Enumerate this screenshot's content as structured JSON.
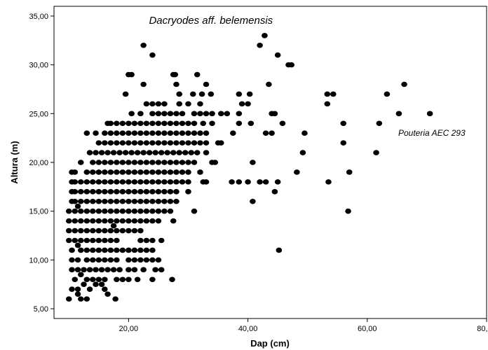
{
  "chart_data": {
    "type": "scatter",
    "xlabel": "Dap (cm)",
    "ylabel": "Altura (m)",
    "xlim": [
      7.5,
      80
    ],
    "ylim": [
      4,
      36
    ],
    "xticks": [
      "20,00",
      "40,00",
      "60,00",
      "80,00"
    ],
    "xtick_values": [
      20,
      40,
      60,
      80
    ],
    "yticks": [
      "5,00",
      "10,00",
      "15,00",
      "20,00",
      "25,00",
      "30,00",
      "35,00"
    ],
    "ytick_values": [
      5,
      10,
      15,
      20,
      25,
      30,
      35
    ],
    "grid": false,
    "legend": "none",
    "marker_color": "#000000",
    "annotations": [
      {
        "text": "Dacryodes aff. belemensis",
        "x": 33.8,
        "y": 34.2
      },
      {
        "text": "Pouteria AEC 293",
        "x": 70.2,
        "y": 23.0
      }
    ],
    "points": [
      [
        22.5,
        32
      ],
      [
        24,
        31
      ],
      [
        42,
        32
      ],
      [
        42.8,
        33
      ],
      [
        46.8,
        30
      ],
      [
        47.3,
        30
      ],
      [
        45,
        31
      ],
      [
        20,
        29
      ],
      [
        20.5,
        29
      ],
      [
        22.5,
        28
      ],
      [
        27.5,
        29
      ],
      [
        27.8,
        29
      ],
      [
        31.5,
        29
      ],
      [
        28,
        28
      ],
      [
        33,
        28
      ],
      [
        43.5,
        28
      ],
      [
        66.2,
        28
      ],
      [
        19.5,
        27
      ],
      [
        28.5,
        27
      ],
      [
        30.8,
        27
      ],
      [
        32.3,
        27
      ],
      [
        33.8,
        27
      ],
      [
        38.5,
        27
      ],
      [
        40.3,
        27
      ],
      [
        53.3,
        27
      ],
      [
        54.3,
        27
      ],
      [
        63.3,
        27
      ],
      [
        23,
        26
      ],
      [
        24,
        26
      ],
      [
        25,
        26
      ],
      [
        26,
        26
      ],
      [
        28.5,
        26
      ],
      [
        30,
        26
      ],
      [
        32,
        26
      ],
      [
        39,
        26
      ],
      [
        40,
        26
      ],
      [
        53.3,
        26
      ],
      [
        20.5,
        25
      ],
      [
        22,
        25
      ],
      [
        24,
        25
      ],
      [
        25,
        25
      ],
      [
        26,
        25
      ],
      [
        27,
        25
      ],
      [
        28,
        25
      ],
      [
        29,
        25
      ],
      [
        31,
        25
      ],
      [
        32,
        25
      ],
      [
        33,
        25
      ],
      [
        34,
        25
      ],
      [
        35.5,
        25
      ],
      [
        36.5,
        25
      ],
      [
        38.5,
        25
      ],
      [
        44,
        25
      ],
      [
        44.5,
        25
      ],
      [
        65.3,
        25
      ],
      [
        70.5,
        25
      ],
      [
        16.5,
        24
      ],
      [
        17,
        24
      ],
      [
        18,
        24
      ],
      [
        19,
        24
      ],
      [
        20,
        24
      ],
      [
        21,
        24
      ],
      [
        22,
        24
      ],
      [
        23,
        24
      ],
      [
        24,
        24
      ],
      [
        25,
        24
      ],
      [
        26,
        24
      ],
      [
        27,
        24
      ],
      [
        28,
        24
      ],
      [
        29,
        24
      ],
      [
        30,
        24
      ],
      [
        31,
        24
      ],
      [
        32.5,
        24
      ],
      [
        34,
        24
      ],
      [
        38.5,
        24
      ],
      [
        40.5,
        24
      ],
      [
        45.8,
        24
      ],
      [
        56,
        24
      ],
      [
        62,
        24
      ],
      [
        13,
        23
      ],
      [
        14.5,
        23
      ],
      [
        16,
        23
      ],
      [
        17,
        23
      ],
      [
        18,
        23
      ],
      [
        19,
        23
      ],
      [
        20,
        23
      ],
      [
        21,
        23
      ],
      [
        22,
        23
      ],
      [
        23,
        23
      ],
      [
        24,
        23
      ],
      [
        25,
        23
      ],
      [
        26,
        23
      ],
      [
        27,
        23
      ],
      [
        28,
        23
      ],
      [
        29,
        23
      ],
      [
        30,
        23
      ],
      [
        31,
        23
      ],
      [
        32,
        23
      ],
      [
        33,
        23
      ],
      [
        37.5,
        23
      ],
      [
        43,
        23
      ],
      [
        44,
        23
      ],
      [
        49.5,
        23
      ],
      [
        15,
        22
      ],
      [
        16,
        22
      ],
      [
        17,
        22
      ],
      [
        18,
        22
      ],
      [
        19,
        22
      ],
      [
        20,
        22
      ],
      [
        21,
        22
      ],
      [
        22,
        22
      ],
      [
        23,
        22
      ],
      [
        24,
        22
      ],
      [
        25,
        22
      ],
      [
        26,
        22
      ],
      [
        27,
        22
      ],
      [
        28,
        22
      ],
      [
        29,
        22
      ],
      [
        30,
        22
      ],
      [
        31,
        22
      ],
      [
        32,
        22
      ],
      [
        33,
        22
      ],
      [
        35,
        22
      ],
      [
        35.5,
        22
      ],
      [
        56,
        22
      ],
      [
        13.5,
        21
      ],
      [
        14.5,
        21
      ],
      [
        15.5,
        21
      ],
      [
        16.5,
        21
      ],
      [
        17.5,
        21
      ],
      [
        18.5,
        21
      ],
      [
        19.5,
        21
      ],
      [
        20.5,
        21
      ],
      [
        21.5,
        21
      ],
      [
        22.5,
        21
      ],
      [
        23.5,
        21
      ],
      [
        24.5,
        21
      ],
      [
        25.5,
        21
      ],
      [
        26.5,
        21
      ],
      [
        27.5,
        21
      ],
      [
        28.5,
        21
      ],
      [
        29.5,
        21
      ],
      [
        30.5,
        21
      ],
      [
        31.5,
        21
      ],
      [
        33,
        21
      ],
      [
        49.2,
        21
      ],
      [
        61.5,
        21
      ],
      [
        12,
        20
      ],
      [
        14,
        20
      ],
      [
        15,
        20
      ],
      [
        16,
        20
      ],
      [
        17,
        20
      ],
      [
        18,
        20
      ],
      [
        19,
        20
      ],
      [
        20,
        20
      ],
      [
        21,
        20
      ],
      [
        22,
        20
      ],
      [
        23,
        20
      ],
      [
        24,
        20
      ],
      [
        25,
        20
      ],
      [
        26,
        20
      ],
      [
        27,
        20
      ],
      [
        28,
        20
      ],
      [
        29,
        20
      ],
      [
        30,
        20
      ],
      [
        31,
        20
      ],
      [
        34,
        20
      ],
      [
        34.5,
        20
      ],
      [
        40.8,
        20
      ],
      [
        10.5,
        19
      ],
      [
        11,
        19
      ],
      [
        13,
        19
      ],
      [
        14,
        19
      ],
      [
        15,
        19
      ],
      [
        16,
        19
      ],
      [
        17,
        19
      ],
      [
        18,
        19
      ],
      [
        19,
        19
      ],
      [
        20,
        19
      ],
      [
        21,
        19
      ],
      [
        22,
        19
      ],
      [
        23,
        19
      ],
      [
        24,
        19
      ],
      [
        25,
        19
      ],
      [
        26,
        19
      ],
      [
        27,
        19
      ],
      [
        28,
        19
      ],
      [
        29,
        19
      ],
      [
        30,
        19
      ],
      [
        32,
        19
      ],
      [
        48.2,
        19
      ],
      [
        57,
        19
      ],
      [
        10.5,
        18
      ],
      [
        11,
        18
      ],
      [
        12,
        18
      ],
      [
        13,
        18
      ],
      [
        14,
        18
      ],
      [
        15,
        18
      ],
      [
        16,
        18
      ],
      [
        17,
        18
      ],
      [
        18,
        18
      ],
      [
        19,
        18
      ],
      [
        20,
        18
      ],
      [
        21,
        18
      ],
      [
        22,
        18
      ],
      [
        23,
        18
      ],
      [
        24,
        18
      ],
      [
        25,
        18
      ],
      [
        26,
        18
      ],
      [
        27,
        18
      ],
      [
        28,
        18
      ],
      [
        29,
        18
      ],
      [
        30,
        18
      ],
      [
        32.5,
        18
      ],
      [
        33,
        18
      ],
      [
        37.3,
        18
      ],
      [
        38.5,
        18
      ],
      [
        40,
        18
      ],
      [
        42,
        18
      ],
      [
        43,
        18
      ],
      [
        45,
        18
      ],
      [
        53.5,
        18
      ],
      [
        10.5,
        17
      ],
      [
        11,
        17
      ],
      [
        12,
        17
      ],
      [
        13,
        17
      ],
      [
        14,
        17
      ],
      [
        15,
        17
      ],
      [
        16,
        17
      ],
      [
        17,
        17
      ],
      [
        18,
        17
      ],
      [
        19,
        17
      ],
      [
        20,
        17
      ],
      [
        21,
        17
      ],
      [
        22,
        17
      ],
      [
        23,
        17
      ],
      [
        24,
        17
      ],
      [
        25,
        17
      ],
      [
        26,
        17
      ],
      [
        27,
        17
      ],
      [
        28,
        17
      ],
      [
        30,
        17
      ],
      [
        44.5,
        17
      ],
      [
        10.5,
        16
      ],
      [
        11,
        16
      ],
      [
        12,
        16
      ],
      [
        13,
        16
      ],
      [
        14,
        16
      ],
      [
        15,
        16
      ],
      [
        16,
        16
      ],
      [
        17,
        16
      ],
      [
        18,
        16
      ],
      [
        19,
        16
      ],
      [
        20,
        16
      ],
      [
        21,
        16
      ],
      [
        22,
        16
      ],
      [
        23,
        16
      ],
      [
        24,
        16
      ],
      [
        25,
        16
      ],
      [
        26,
        16
      ],
      [
        27,
        16
      ],
      [
        28,
        16
      ],
      [
        40.8,
        16
      ],
      [
        10,
        15
      ],
      [
        11,
        15
      ],
      [
        11.5,
        15.5
      ],
      [
        12,
        15
      ],
      [
        13,
        15
      ],
      [
        14,
        15
      ],
      [
        15,
        15
      ],
      [
        16,
        15
      ],
      [
        17,
        15
      ],
      [
        18,
        15
      ],
      [
        19,
        15
      ],
      [
        20,
        15
      ],
      [
        21,
        15
      ],
      [
        22,
        15
      ],
      [
        23,
        15
      ],
      [
        24,
        15
      ],
      [
        25,
        15
      ],
      [
        26,
        15
      ],
      [
        27,
        15
      ],
      [
        31,
        15
      ],
      [
        56.8,
        15
      ],
      [
        10,
        14
      ],
      [
        11,
        14
      ],
      [
        12,
        14
      ],
      [
        13,
        14
      ],
      [
        14,
        14
      ],
      [
        15,
        14
      ],
      [
        16,
        14
      ],
      [
        17,
        14
      ],
      [
        18,
        14
      ],
      [
        19,
        14
      ],
      [
        20,
        14
      ],
      [
        21,
        14
      ],
      [
        22,
        14
      ],
      [
        23,
        14
      ],
      [
        24,
        14
      ],
      [
        25,
        14
      ],
      [
        27.5,
        14
      ],
      [
        10,
        13
      ],
      [
        11,
        13
      ],
      [
        12,
        13
      ],
      [
        13,
        13
      ],
      [
        14,
        13
      ],
      [
        15,
        13
      ],
      [
        16,
        13
      ],
      [
        17,
        13
      ],
      [
        18,
        13
      ],
      [
        19,
        13
      ],
      [
        20,
        13
      ],
      [
        21,
        13
      ],
      [
        22,
        13
      ],
      [
        17.5,
        13.5
      ],
      [
        10,
        12
      ],
      [
        11,
        12
      ],
      [
        12,
        12
      ],
      [
        13,
        12
      ],
      [
        14,
        12
      ],
      [
        15,
        12
      ],
      [
        16,
        12
      ],
      [
        17,
        12
      ],
      [
        18,
        12
      ],
      [
        22,
        12
      ],
      [
        23,
        12
      ],
      [
        24,
        12
      ],
      [
        25.5,
        12
      ],
      [
        10.5,
        11
      ],
      [
        11.5,
        11.5
      ],
      [
        12,
        11
      ],
      [
        13,
        11
      ],
      [
        14,
        11
      ],
      [
        15,
        11
      ],
      [
        16,
        11
      ],
      [
        17,
        11
      ],
      [
        18,
        11
      ],
      [
        19,
        11
      ],
      [
        20,
        11
      ],
      [
        21,
        11
      ],
      [
        22,
        11
      ],
      [
        23,
        11
      ],
      [
        24,
        11
      ],
      [
        45.2,
        11
      ],
      [
        10.5,
        10
      ],
      [
        11.5,
        10
      ],
      [
        13,
        10
      ],
      [
        14,
        10
      ],
      [
        15,
        10
      ],
      [
        16,
        10
      ],
      [
        17,
        10
      ],
      [
        18,
        10
      ],
      [
        20,
        10
      ],
      [
        21,
        10
      ],
      [
        22,
        10
      ],
      [
        23,
        10
      ],
      [
        24,
        10
      ],
      [
        25,
        10
      ],
      [
        10.5,
        9
      ],
      [
        11.5,
        9
      ],
      [
        12.5,
        9
      ],
      [
        13.5,
        9
      ],
      [
        14.5,
        9
      ],
      [
        15.5,
        9
      ],
      [
        16.5,
        9
      ],
      [
        17.5,
        9
      ],
      [
        18.5,
        9
      ],
      [
        20,
        9
      ],
      [
        21,
        9
      ],
      [
        22.5,
        9
      ],
      [
        24.5,
        9
      ],
      [
        25.5,
        9
      ],
      [
        11,
        8
      ],
      [
        12,
        8.5
      ],
      [
        13,
        8
      ],
      [
        14,
        8
      ],
      [
        15,
        8
      ],
      [
        16,
        8
      ],
      [
        18,
        8
      ],
      [
        19,
        8
      ],
      [
        20,
        8
      ],
      [
        21.5,
        8
      ],
      [
        24,
        8
      ],
      [
        27.3,
        8
      ],
      [
        10.5,
        7
      ],
      [
        11.5,
        7
      ],
      [
        12.5,
        7.5
      ],
      [
        13.5,
        7
      ],
      [
        14.5,
        7.5
      ],
      [
        15.5,
        7.5
      ],
      [
        16,
        7
      ],
      [
        16.5,
        6.5
      ],
      [
        10,
        6
      ],
      [
        11.5,
        6.5
      ],
      [
        12,
        6
      ],
      [
        13,
        6
      ],
      [
        17.8,
        6
      ]
    ]
  }
}
